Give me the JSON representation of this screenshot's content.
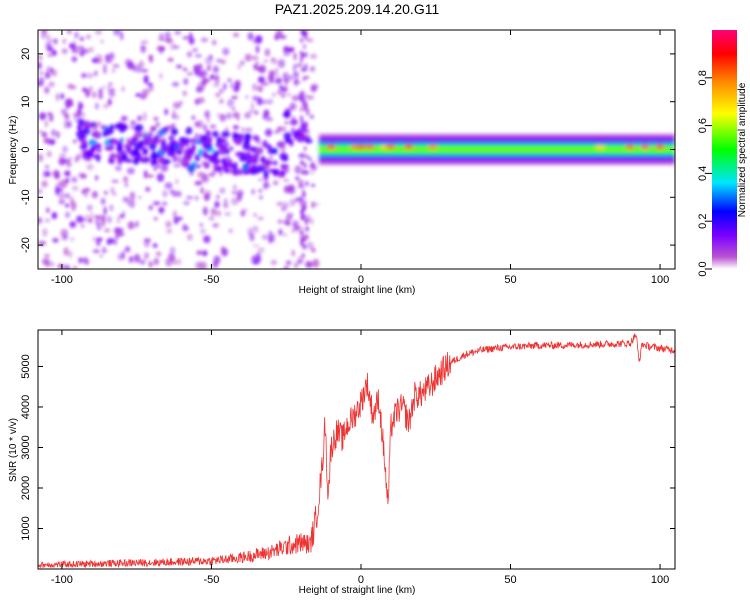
{
  "title": "PAZ1.2025.209.14.20.G11",
  "colors": {
    "snr_line": "#ee3333",
    "axis": "#000000"
  },
  "chart_data": [
    {
      "type": "heatmap",
      "title": "PAZ1.2025.209.14.20.G11",
      "xlabel": "Height of straight line (km)",
      "ylabel": "Frequency (Hz)",
      "xlim": [
        -108,
        105
      ],
      "ylim": [
        -25,
        25
      ],
      "xticks": [
        -100,
        -50,
        0,
        50,
        100
      ],
      "yticks": [
        -20,
        -10,
        0,
        10,
        20
      ],
      "colormap": [
        "#ffffff",
        "#ba55d3",
        "#7b00ff",
        "#0000ff",
        "#00e5ff",
        "#00ff00",
        "#ffff00",
        "#ff8c00",
        "#ff0000",
        "#ff0077"
      ],
      "colorbar": {
        "label": "Normalized spectral amplitude",
        "range": [
          0,
          1
        ],
        "ticks": [
          "0.0",
          "0.2",
          "0.4",
          "0.6",
          "0.8"
        ]
      },
      "main_band": {
        "freq_hz": 0,
        "start_km": -14,
        "end_km": 105,
        "peak_amplitude": 1.0
      },
      "notes": "Scattered low-amplitude speckle below about -15 km; strong coherent band near 0 Hz above about -14 km"
    },
    {
      "type": "line",
      "xlabel": "Height of straight line (km)",
      "ylabel": "SNR (10 * v/v)",
      "xlim": [
        -108,
        105
      ],
      "ylim": [
        0,
        5900
      ],
      "xticks": [
        -100,
        -50,
        0,
        50,
        100
      ],
      "yticks": [
        1000,
        2000,
        3000,
        4000,
        5000
      ],
      "series": [
        {
          "x": [
            -108,
            -90,
            -70,
            -50,
            -40,
            -30,
            -25,
            -20,
            -17,
            -15,
            -13,
            -12,
            -11,
            -10,
            -8,
            -6,
            -5,
            -3,
            0,
            2,
            4,
            6,
            8,
            9,
            10,
            12,
            14,
            16,
            18,
            20,
            23,
            26,
            30,
            35,
            40,
            45,
            50,
            55,
            60,
            65,
            70,
            75,
            80,
            85,
            90,
            92,
            93,
            94,
            96,
            100,
            105
          ],
          "y": [
            100,
            130,
            160,
            200,
            280,
            420,
            550,
            650,
            600,
            1200,
            2500,
            3600,
            1800,
            3000,
            3400,
            3200,
            3500,
            3700,
            4100,
            4600,
            3800,
            4200,
            2600,
            1500,
            3500,
            3900,
            4000,
            3600,
            4300,
            4300,
            4500,
            4800,
            5100,
            5300,
            5400,
            5450,
            5480,
            5500,
            5520,
            5520,
            5530,
            5540,
            5550,
            5560,
            5570,
            5800,
            5100,
            5550,
            5500,
            5450,
            5400
          ]
        }
      ]
    }
  ]
}
